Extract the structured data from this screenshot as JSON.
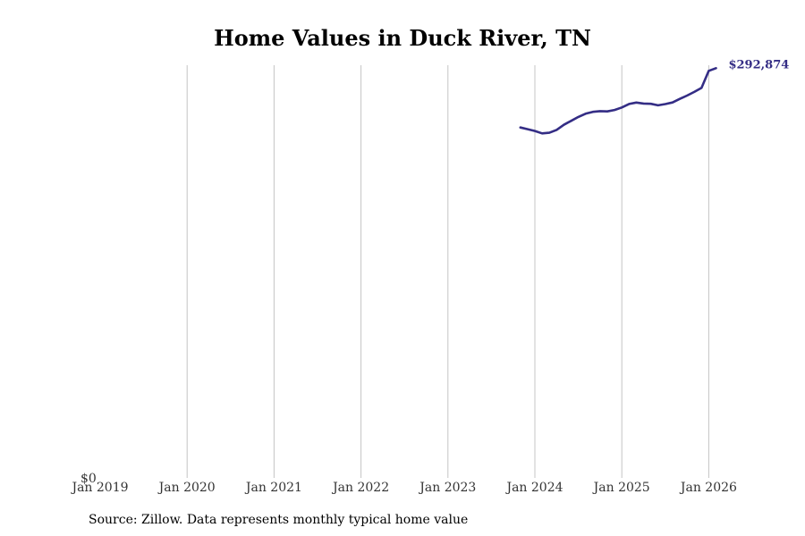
{
  "chart_data": {
    "type": "line",
    "title": "Home Values in Duck River, TN",
    "xlabel": "",
    "ylabel": "",
    "x_ticks": [
      "Jan 2019",
      "Jan 2020",
      "Jan 2021",
      "Jan 2022",
      "Jan 2023",
      "Jan 2024",
      "Jan 2025",
      "Jan 2026"
    ],
    "y_tick_label": "$0",
    "ylim": [
      0,
      295000
    ],
    "grid": "vertical",
    "end_label": "$292,874",
    "series": [
      {
        "name": "Typical home value",
        "color": "#342d85",
        "x": [
          2023.833,
          2023.917,
          2024.0,
          2024.083,
          2024.167,
          2024.25,
          2024.333,
          2024.417,
          2024.5,
          2024.583,
          2024.667,
          2024.75,
          2024.833,
          2024.917,
          2025.0,
          2025.083,
          2025.167,
          2025.25,
          2025.333,
          2025.417,
          2025.5,
          2025.583,
          2025.667,
          2025.75,
          2025.833,
          2025.917,
          2026.0,
          2026.083
        ],
        "values": [
          250500,
          249300,
          248000,
          246300,
          246700,
          248800,
          252400,
          255200,
          258000,
          260300,
          261700,
          262200,
          262000,
          263000,
          264800,
          267300,
          268300,
          267600,
          267400,
          266300,
          267200,
          268400,
          270900,
          273300,
          275900,
          278800,
          291000,
          292874
        ]
      }
    ]
  },
  "source_text": "Source: Zillow. Data represents monthly typical home value"
}
